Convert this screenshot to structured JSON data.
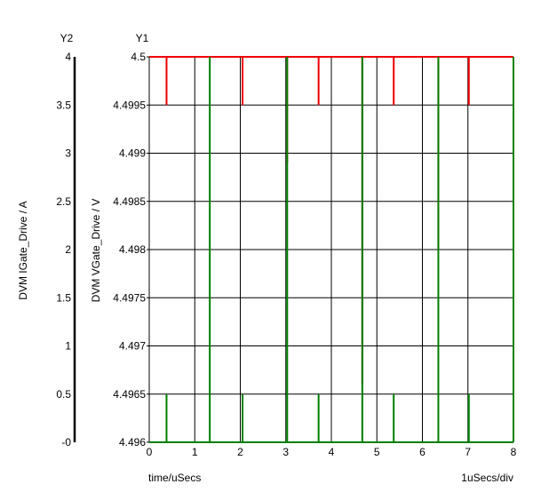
{
  "chart_data": {
    "type": "line",
    "x_label": "time/uSecs",
    "x_scale_label": "1uSecs/div",
    "xlim": [
      0,
      8
    ],
    "x_ticks": [
      "0",
      "1",
      "2",
      "3",
      "4",
      "5",
      "6",
      "7",
      "8"
    ],
    "y1": {
      "header": "Y1",
      "label": "DVM VGate_Drive / V",
      "ylim": [
        4.496,
        4.5
      ],
      "ticks": [
        "4.5",
        "4.4995",
        "4.499",
        "4.4985",
        "4.498",
        "4.4975",
        "4.497",
        "4.4965",
        "4.496"
      ]
    },
    "y2": {
      "header": "Y2",
      "label": "DVM IGate_Drive / A",
      "ylim": [
        0,
        4
      ],
      "ticks": [
        "4",
        "3.5",
        "3",
        "2.5",
        "2",
        "1.5",
        "1",
        "0.5",
        "-0"
      ]
    },
    "grid": true,
    "series": [
      {
        "axis": "y1",
        "color": "#ee0000",
        "baseline": 4.5,
        "spikes": [
          {
            "x": 0.38,
            "min": 4.4995
          },
          {
            "x": 2.05,
            "min": 4.4995
          },
          {
            "x": 3.03,
            "min": 4.4989
          },
          {
            "x": 3.72,
            "min": 4.4995
          },
          {
            "x": 4.68,
            "min": 4.4966
          },
          {
            "x": 5.37,
            "min": 4.4995
          },
          {
            "x": 6.35,
            "min": 4.498
          },
          {
            "x": 7.02,
            "min": 4.4995
          }
        ]
      },
      {
        "axis": "y2",
        "color": "#008000",
        "baseline": 0,
        "spikes": [
          {
            "x": 0.38,
            "max": 0.5
          },
          {
            "x": 1.33,
            "max": 4
          },
          {
            "x": 2.05,
            "max": 0.5
          },
          {
            "x": 3.03,
            "max": 4
          },
          {
            "x": 3.72,
            "max": 0.5
          },
          {
            "x": 4.68,
            "max": 4
          },
          {
            "x": 5.37,
            "max": 0.5
          },
          {
            "x": 6.35,
            "max": 4
          },
          {
            "x": 7.02,
            "max": 0.5
          },
          {
            "x": 8.0,
            "max": 4
          }
        ]
      }
    ]
  }
}
